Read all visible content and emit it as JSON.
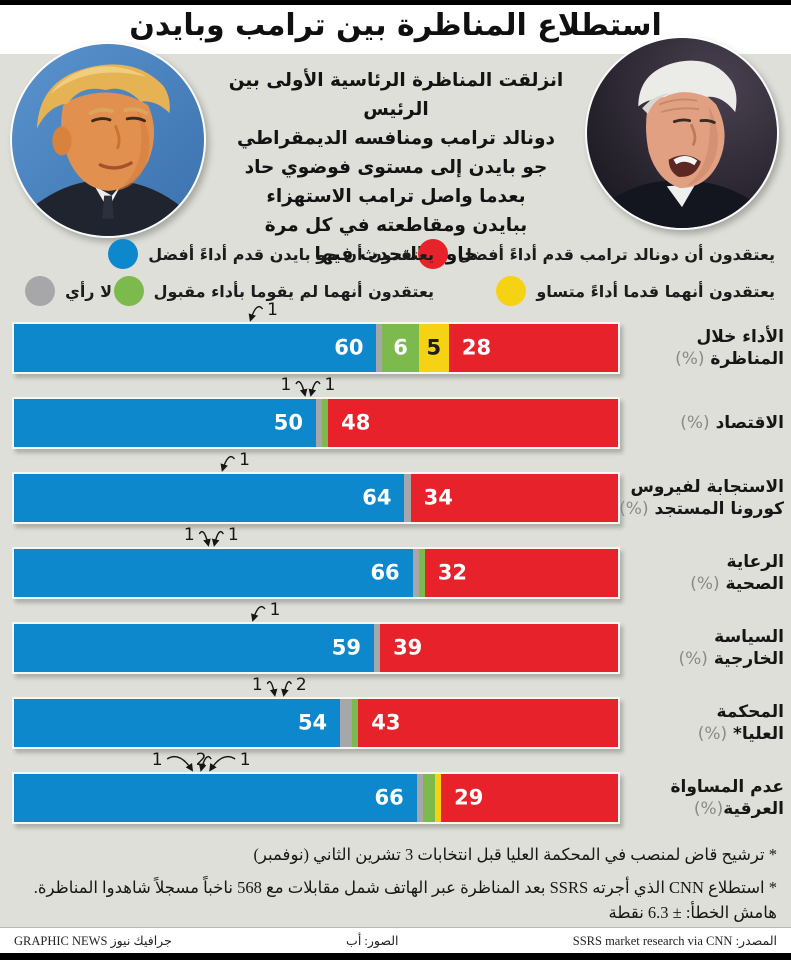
{
  "title": "استطلاع المناظرة بين ترامب وبايدن",
  "intro": "انزلقت المناظرة الرئاسية الأولى بين الرئيس\nدونالد ترامب ومنافسه الديمقراطي\nجو بايدن إلى مستوى فوضوي حاد\nبعدما واصل ترامب الاستهزاء\nببايدن ومقاطعته في كل مرة\nحاول التحدث فيها",
  "colors": {
    "trump_better": "#e7222a",
    "tied": "#f6d214",
    "neither_acceptable": "#7cba4d",
    "no_opinion": "#a7a7aa",
    "biden_better": "#0e88cc",
    "background": "#dfdfd9",
    "bar_border": "#f7f7f1"
  },
  "legend": {
    "items": [
      {
        "id": "trump",
        "color_key": "trump_better",
        "label": "يعتقدون أن دونالد ترامب قدم أداءً أفضل"
      },
      {
        "id": "biden",
        "color_key": "biden_better",
        "label": "يعتقدون أن جو بايدن قدم أداءً أفضل"
      },
      {
        "id": "tied",
        "color_key": "tied",
        "label": "يعتقدون أنهما قدما أداءً متساو"
      },
      {
        "id": "neither",
        "color_key": "neither_acceptable",
        "label": "يعتقدون أنهما لم يقوما بأداء مقبول"
      },
      {
        "id": "no-opinion",
        "color_key": "no_opinion",
        "label": "لا رأي"
      }
    ]
  },
  "chart_data": {
    "type": "bar",
    "stacked": true,
    "orientation": "horizontal",
    "unit": "%",
    "legend_position": "top",
    "rows": [
      {
        "label_lines": [
          "الأداء خلال",
          "المناظرة (%)"
        ],
        "segments": [
          {
            "key": "trump_better",
            "value": 28
          },
          {
            "key": "tied",
            "value": 5
          },
          {
            "key": "neither_acceptable",
            "value": 6
          },
          {
            "key": "no_opinion",
            "value": 1,
            "annotated": true
          },
          {
            "key": "biden_better",
            "value": 60
          }
        ]
      },
      {
        "label_lines": [
          "الاقتصاد (%)"
        ],
        "segments": [
          {
            "key": "trump_better",
            "value": 48
          },
          {
            "key": "neither_acceptable",
            "value": 1,
            "annotated": true
          },
          {
            "key": "no_opinion",
            "value": 1,
            "annotated": true
          },
          {
            "key": "biden_better",
            "value": 50
          }
        ]
      },
      {
        "label_lines": [
          "الاستجابة لفيروس",
          "كورونا المستجد (%)"
        ],
        "segments": [
          {
            "key": "trump_better",
            "value": 34
          },
          {
            "key": "no_opinion",
            "value": 1,
            "annotated": true
          },
          {
            "key": "biden_better",
            "value": 64
          }
        ]
      },
      {
        "label_lines": [
          "الرعاية",
          "الصحية (%)"
        ],
        "segments": [
          {
            "key": "trump_better",
            "value": 32
          },
          {
            "key": "neither_acceptable",
            "value": 1,
            "annotated": true
          },
          {
            "key": "no_opinion",
            "value": 1,
            "annotated": true
          },
          {
            "key": "biden_better",
            "value": 66
          }
        ]
      },
      {
        "label_lines": [
          "السياسة",
          "الخارجية (%)"
        ],
        "segments": [
          {
            "key": "trump_better",
            "value": 39
          },
          {
            "key": "no_opinion",
            "value": 1,
            "annotated": true
          },
          {
            "key": "biden_better",
            "value": 59
          }
        ]
      },
      {
        "label_lines": [
          "المحكمة",
          "العليا* (%)"
        ],
        "segments": [
          {
            "key": "trump_better",
            "value": 43
          },
          {
            "key": "neither_acceptable",
            "value": 1,
            "annotated": true
          },
          {
            "key": "no_opinion",
            "value": 2,
            "annotated": true
          },
          {
            "key": "biden_better",
            "value": 54
          }
        ]
      },
      {
        "label_lines": [
          "عدم المساواة",
          "العرقية(%)"
        ],
        "segments": [
          {
            "key": "trump_better",
            "value": 29
          },
          {
            "key": "tied",
            "value": 1,
            "annotated": true
          },
          {
            "key": "neither_acceptable",
            "value": 2,
            "annotated": true
          },
          {
            "key": "no_opinion",
            "value": 1,
            "annotated": true
          },
          {
            "key": "biden_better",
            "value": 66
          }
        ]
      }
    ]
  },
  "footnotes": [
    "* ترشيح قاض لمنصب في المحكمة العليا قبل انتخابات 3 تشرين الثاني (نوفمبر)",
    "* استطلاع CNN الذي أجرته SSRS بعد المناظرة عبر الهاتف شمل مقابلات مع 568 ناخباً مسجلاً شاهدوا المناظرة. هامش الخطأ: ± 6.3 نقطة"
  ],
  "footer": {
    "source": "المصدر: SSRS market research via CNN",
    "photos_credit": "الصور: أب",
    "brand": "جرافيك نيوز GRAPHIC NEWS"
  }
}
